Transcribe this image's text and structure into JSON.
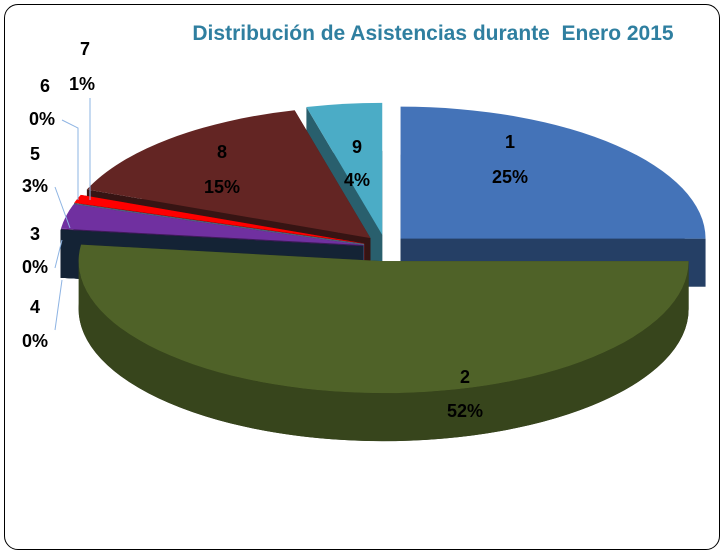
{
  "chart_data": {
    "type": "pie3d",
    "title": "Distribución de Asistencias durante  Enero 2015",
    "categories": [
      "1",
      "2",
      "3",
      "4",
      "5",
      "6",
      "7",
      "8",
      "9"
    ],
    "values": [
      25,
      52,
      0,
      0,
      3,
      0,
      1,
      15,
      4
    ],
    "value_labels": [
      "25%",
      "52%",
      "0%",
      "0%",
      "3%",
      "0%",
      "1%",
      "15%",
      "4%"
    ],
    "colors": [
      "#4473b8",
      "#4f6228",
      "#1f3864",
      "#243f60",
      "#7030a0",
      "#8eb4e3",
      "#ff0000",
      "#632523",
      "#4bacc6"
    ]
  }
}
